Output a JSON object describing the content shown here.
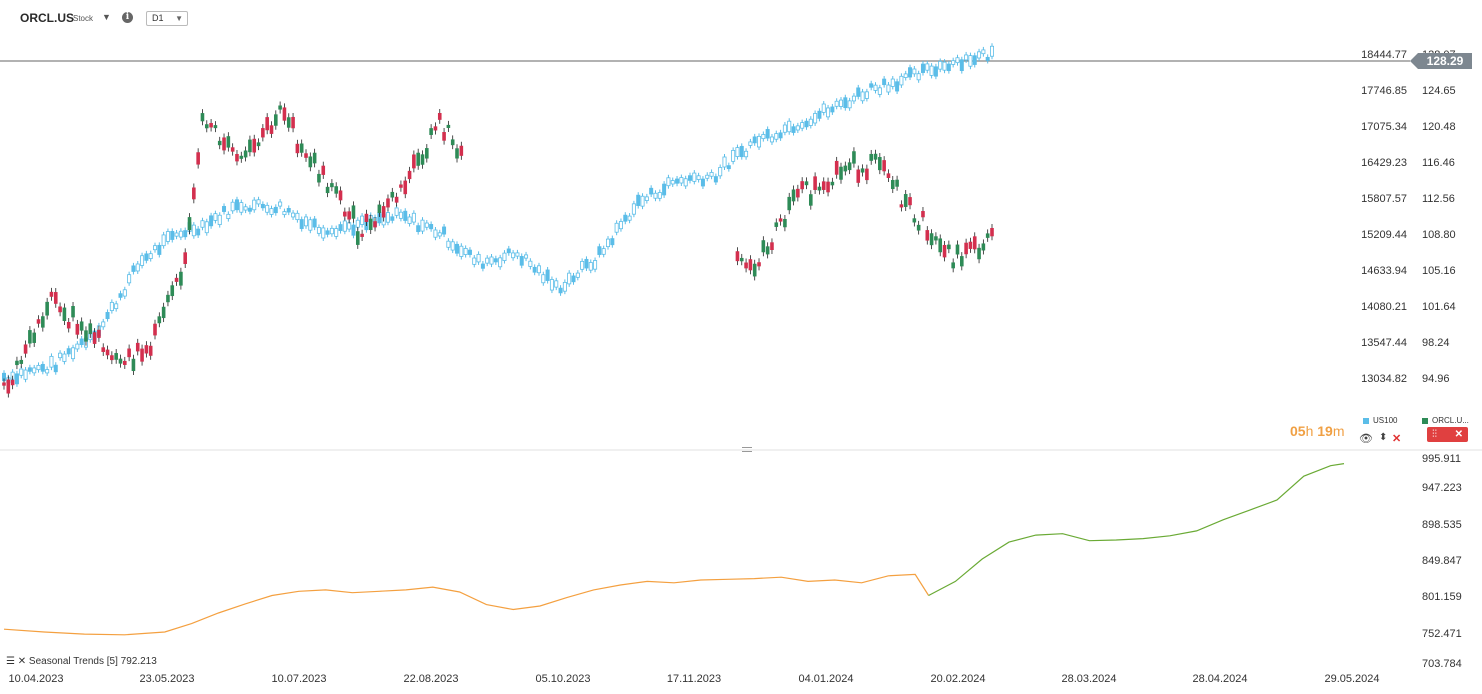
{
  "toolbar": {
    "symbol": "ORCL.US",
    "symbol_type": "Stock",
    "info_glyph": "i",
    "timeframe": "D1"
  },
  "price_axis": [
    "18444.77",
    "17746.85",
    "17075.34",
    "16429.23",
    "15807.57",
    "15209.44",
    "14633.94",
    "14080.21",
    "13547.44",
    "13034.82"
  ],
  "right_axis": [
    "128.07",
    "124.65",
    "120.48",
    "116.46",
    "112.56",
    "108.80",
    "105.16",
    "101.64",
    "98.24",
    "94.96"
  ],
  "current_price": "128.29",
  "legend": {
    "us100": "US100",
    "orcl": "ORCL.U..."
  },
  "countdown": {
    "h": "05",
    "h_unit": "h",
    "m": "19",
    "m_unit": "m"
  },
  "seasonal_axis": [
    "995.911",
    "947.223",
    "898.535",
    "849.847",
    "801.159",
    "752.471",
    "703.784"
  ],
  "seasonal_label": "Seasonal  Trends  [5]  792.213",
  "x_axis": [
    "10.04.2023",
    "23.05.2023",
    "10.07.2023",
    "22.08.2023",
    "05.10.2023",
    "17.11.2023",
    "04.01.2024",
    "20.02.2024",
    "28.03.2024",
    "28.04.2024",
    "29.05.2024"
  ],
  "colors": {
    "us100": "#5bbde8",
    "up": "#2e8b57",
    "down": "#d32f4e",
    "season_past": "#f4a040",
    "season_future": "#6aaa35"
  },
  "chart_data": [
    {
      "type": "line",
      "title": "",
      "series": [
        {
          "name": "ORCL.US",
          "values": [
            [
              0,
              94
            ],
            [
              5,
              103
            ],
            [
              10,
              98
            ],
            [
              14,
              97
            ],
            [
              18,
              105
            ],
            [
              20,
              121
            ],
            [
              24,
              118
            ],
            [
              28,
              122
            ],
            [
              32,
              116
            ],
            [
              36,
              110
            ],
            [
              40,
              114
            ],
            [
              44,
              121
            ],
            [
              48,
              116
            ],
            [
              52,
              107
            ],
            [
              56,
              103
            ],
            [
              60,
              101
            ],
            [
              64,
              102
            ],
            [
              68,
              110
            ],
            [
              72,
              107
            ],
            [
              76,
              106
            ],
            [
              80,
              113
            ],
            [
              84,
              116
            ],
            [
              88,
              117
            ],
            [
              92,
              112
            ],
            [
              96,
              107
            ],
            [
              100,
              109
            ]
          ]
        },
        {
          "name": "US100",
          "values": [
            [
              0,
              13050
            ],
            [
              5,
              13200
            ],
            [
              10,
              13800
            ],
            [
              14,
              14800
            ],
            [
              18,
              15250
            ],
            [
              20,
              15350
            ],
            [
              24,
              15700
            ],
            [
              28,
              15650
            ],
            [
              32,
              15300
            ],
            [
              36,
              15350
            ],
            [
              40,
              15500
            ],
            [
              44,
              15250
            ],
            [
              48,
              14750
            ],
            [
              52,
              14900
            ],
            [
              56,
              14350
            ],
            [
              60,
              14800
            ],
            [
              64,
              15700
            ],
            [
              68,
              16100
            ],
            [
              72,
              16200
            ],
            [
              76,
              16800
            ],
            [
              80,
              17100
            ],
            [
              84,
              17400
            ],
            [
              88,
              17800
            ],
            [
              92,
              18000
            ],
            [
              96,
              18300
            ],
            [
              100,
              18444.77
            ]
          ]
        }
      ],
      "x_labels": [
        "10.04.2023",
        "23.05.2023",
        "10.07.2023",
        "22.08.2023",
        "05.10.2023",
        "17.11.2023",
        "04.01.2024",
        "20.02.2024"
      ]
    },
    {
      "type": "line",
      "title": "",
      "series": [
        {
          "name": "Seasonal",
          "values": [
            [
              0,
              752
            ],
            [
              3,
              748
            ],
            [
              6,
              745
            ],
            [
              9,
              744
            ],
            [
              12,
              748
            ],
            [
              14,
              760
            ],
            [
              16,
              775
            ],
            [
              18,
              788
            ],
            [
              20,
              800
            ],
            [
              22,
              806
            ],
            [
              24,
              808
            ],
            [
              26,
              804
            ],
            [
              28,
              806
            ],
            [
              30,
              808
            ],
            [
              32,
              812
            ],
            [
              34,
              805
            ],
            [
              36,
              787
            ],
            [
              38,
              780
            ],
            [
              40,
              785
            ],
            [
              42,
              797
            ],
            [
              44,
              808
            ],
            [
              46,
              815
            ],
            [
              48,
              820
            ],
            [
              50,
              818
            ],
            [
              52,
              822
            ],
            [
              54,
              823
            ],
            [
              56,
              824
            ],
            [
              58,
              826
            ],
            [
              60,
              820
            ],
            [
              62,
              822
            ],
            [
              64,
              818
            ],
            [
              66,
              828
            ],
            [
              68,
              830
            ],
            [
              69,
              800
            ],
            [
              71,
              820
            ],
            [
              73,
              852
            ],
            [
              75,
              876
            ],
            [
              77,
              886
            ],
            [
              79,
              888
            ],
            [
              81,
              878
            ],
            [
              83,
              879
            ],
            [
              85,
              881
            ],
            [
              87,
              885
            ],
            [
              89,
              892
            ],
            [
              91,
              908
            ],
            [
              93,
              922
            ],
            [
              95,
              936
            ],
            [
              97,
              970
            ],
            [
              99,
              985
            ],
            [
              100,
              988
            ]
          ]
        }
      ],
      "ylim": [
        703.784,
        995.911
      ]
    }
  ]
}
